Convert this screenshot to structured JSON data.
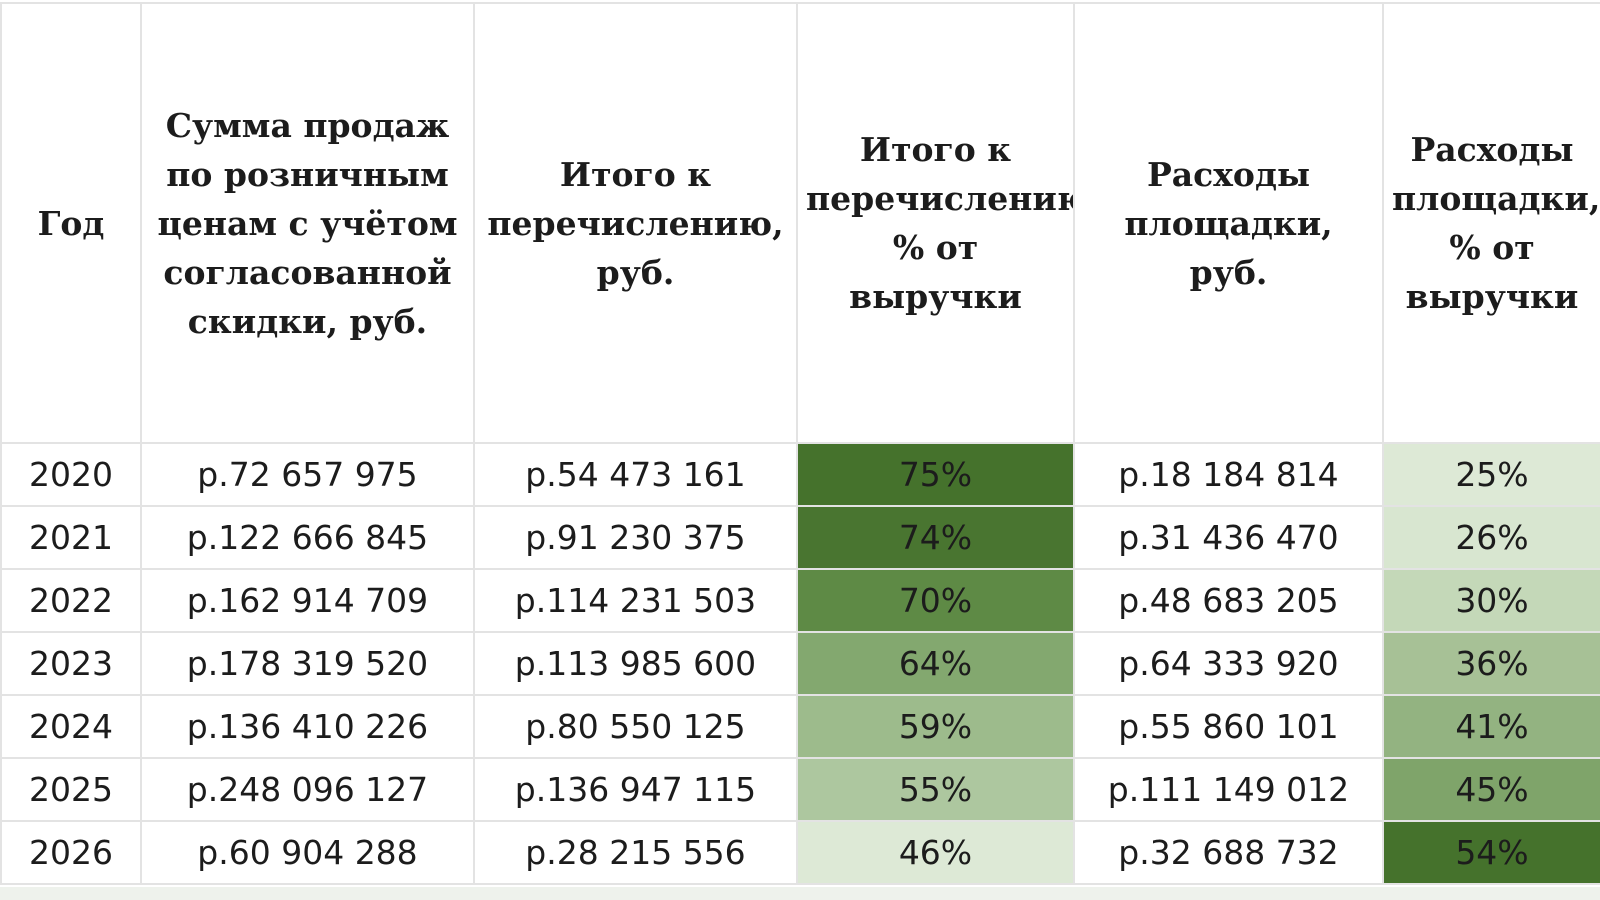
{
  "table": {
    "headers": [
      "Год",
      "Сумма продаж по розничным ценам с учётом согласованной скидки, руб.",
      "Итого к перечислению, руб.",
      "Итого к перечислению, % от выручки",
      "Расходы площадки, руб.",
      "Расходы площадки, % от выручки"
    ],
    "rows": [
      {
        "year": "2020",
        "sales": "р.72 657 975",
        "payout": "р.54 473 161",
        "payout_pct": "75%",
        "fees": "р.18 184 814",
        "fees_pct": "25%"
      },
      {
        "year": "2021",
        "sales": "р.122 666 845",
        "payout": "р.91 230 375",
        "payout_pct": "74%",
        "fees": "р.31 436 470",
        "fees_pct": "26%"
      },
      {
        "year": "2022",
        "sales": "р.162 914 709",
        "payout": "р.114 231 503",
        "payout_pct": "70%",
        "fees": "р.48 683 205",
        "fees_pct": "30%"
      },
      {
        "year": "2023",
        "sales": "р.178 319 520",
        "payout": "р.113 985 600",
        "payout_pct": "64%",
        "fees": "р.64 333 920",
        "fees_pct": "36%"
      },
      {
        "year": "2024",
        "sales": "р.136 410 226",
        "payout": "р.80 550 125",
        "payout_pct": "59%",
        "fees": "р.55 860 101",
        "fees_pct": "41%"
      },
      {
        "year": "2025",
        "sales": "р.248 096 127",
        "payout": "р.136 947 115",
        "payout_pct": "55%",
        "fees": "р.111 149 012",
        "fees_pct": "45%"
      },
      {
        "year": "2026",
        "sales": "р.60 904 288",
        "payout": "р.28 215 556",
        "payout_pct": "46%",
        "fees": "р.32 688 732",
        "fees_pct": "54%"
      }
    ],
    "heatmap_colors": {
      "payout_pct": [
        "#45722c",
        "#497530",
        "#5e8a45",
        "#83a86f",
        "#9dbb8c",
        "#adc79f",
        "#dde9d6"
      ],
      "fees_pct": [
        "#dde9d6",
        "#d8e6d0",
        "#c4d8b8",
        "#a7c196",
        "#93b381",
        "#7fa46a",
        "#45722c"
      ]
    }
  }
}
